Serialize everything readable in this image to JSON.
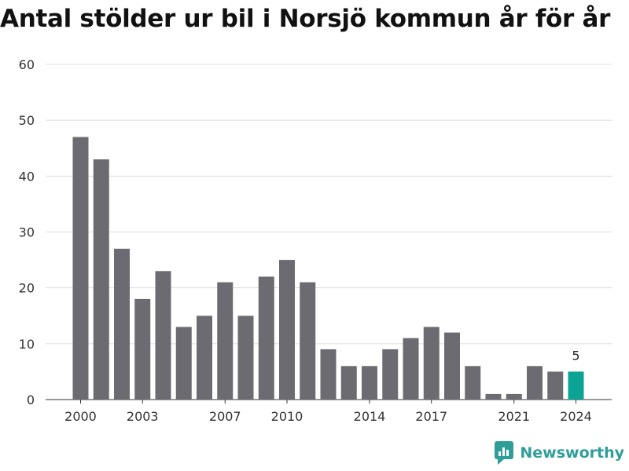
{
  "title": "Antal stölder ur bil i Norsjö kommun år för år",
  "brand": {
    "name": "Newsworthy",
    "icon": "newsworthy-logo-icon",
    "color": "#2f9e98"
  },
  "chart_data": {
    "type": "bar",
    "title": "Antal stölder ur bil i Norsjö kommun år för år",
    "xlabel": "",
    "ylabel": "",
    "categories": [
      2000,
      2001,
      2002,
      2003,
      2004,
      2005,
      2006,
      2007,
      2008,
      2009,
      2010,
      2011,
      2012,
      2013,
      2014,
      2015,
      2016,
      2017,
      2018,
      2019,
      2020,
      2021,
      2022,
      2023,
      2024
    ],
    "values": [
      47,
      43,
      27,
      18,
      23,
      13,
      15,
      21,
      15,
      22,
      25,
      21,
      9,
      6,
      6,
      9,
      11,
      13,
      12,
      6,
      1,
      1,
      6,
      5,
      5
    ],
    "x_tick_labels": [
      2000,
      2003,
      2007,
      2010,
      2014,
      2017,
      2021,
      2024
    ],
    "y_ticks": [
      0,
      10,
      20,
      30,
      40,
      50,
      60
    ],
    "ylim": [
      0,
      60
    ],
    "grid": true,
    "bar_color": "#6c6b72",
    "highlight_color": "#0aa394",
    "highlight_category": 2024,
    "annotation": {
      "category": 2024,
      "text": "5"
    }
  }
}
